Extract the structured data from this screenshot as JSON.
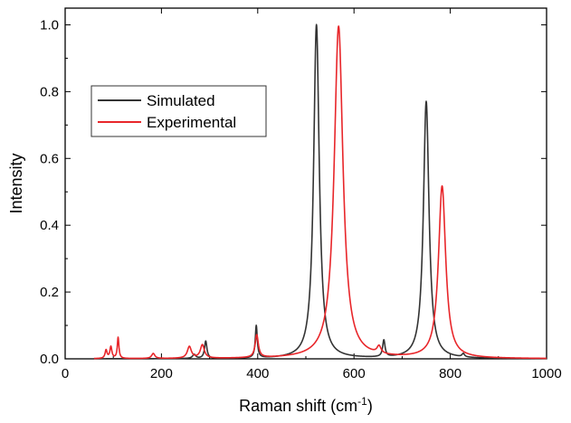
{
  "chart_data": {
    "type": "line",
    "title": "",
    "xlabel": "Raman shift (cm",
    "xlabel_superscript": "-1",
    "xlabel_suffix": ")",
    "ylabel": "Intensity",
    "xlim": [
      0,
      1000
    ],
    "ylim": [
      0,
      1.05
    ],
    "x_ticks": [
      0,
      200,
      400,
      600,
      800,
      1000
    ],
    "x_tick_labels": [
      "0",
      "200",
      "400",
      "600",
      "800",
      "1000"
    ],
    "y_ticks": [
      0,
      0.2,
      0.4,
      0.6,
      0.8,
      1.0
    ],
    "y_tick_labels": [
      "0.0",
      "0.2",
      "0.4",
      "0.6",
      "0.8",
      "1.0"
    ],
    "grid": false,
    "legend_position": "upper-left",
    "series": [
      {
        "name": "Simulated",
        "color": "#333333",
        "peaks": [
          {
            "x": 268,
            "height": 0.012,
            "width": 4
          },
          {
            "x": 292,
            "height": 0.052,
            "width": 3
          },
          {
            "x": 397,
            "height": 0.097,
            "width": 2.5
          },
          {
            "x": 522,
            "height": 1.0,
            "width": 7
          },
          {
            "x": 662,
            "height": 0.05,
            "width": 3
          },
          {
            "x": 750,
            "height": 0.77,
            "width": 7
          },
          {
            "x": 827,
            "height": 0.01,
            "width": 3
          }
        ]
      },
      {
        "name": "Experimental",
        "color": "#e8262a",
        "peaks": [
          {
            "x": 85,
            "height": 0.025,
            "width": 2.5
          },
          {
            "x": 95,
            "height": 0.035,
            "width": 2.5
          },
          {
            "x": 110,
            "height": 0.063,
            "width": 2
          },
          {
            "x": 183,
            "height": 0.015,
            "width": 4
          },
          {
            "x": 258,
            "height": 0.035,
            "width": 5
          },
          {
            "x": 285,
            "height": 0.04,
            "width": 5
          },
          {
            "x": 398,
            "height": 0.068,
            "width": 4
          },
          {
            "x": 568,
            "height": 0.995,
            "width": 11
          },
          {
            "x": 652,
            "height": 0.022,
            "width": 5
          },
          {
            "x": 783,
            "height": 0.515,
            "width": 9
          }
        ]
      }
    ]
  }
}
